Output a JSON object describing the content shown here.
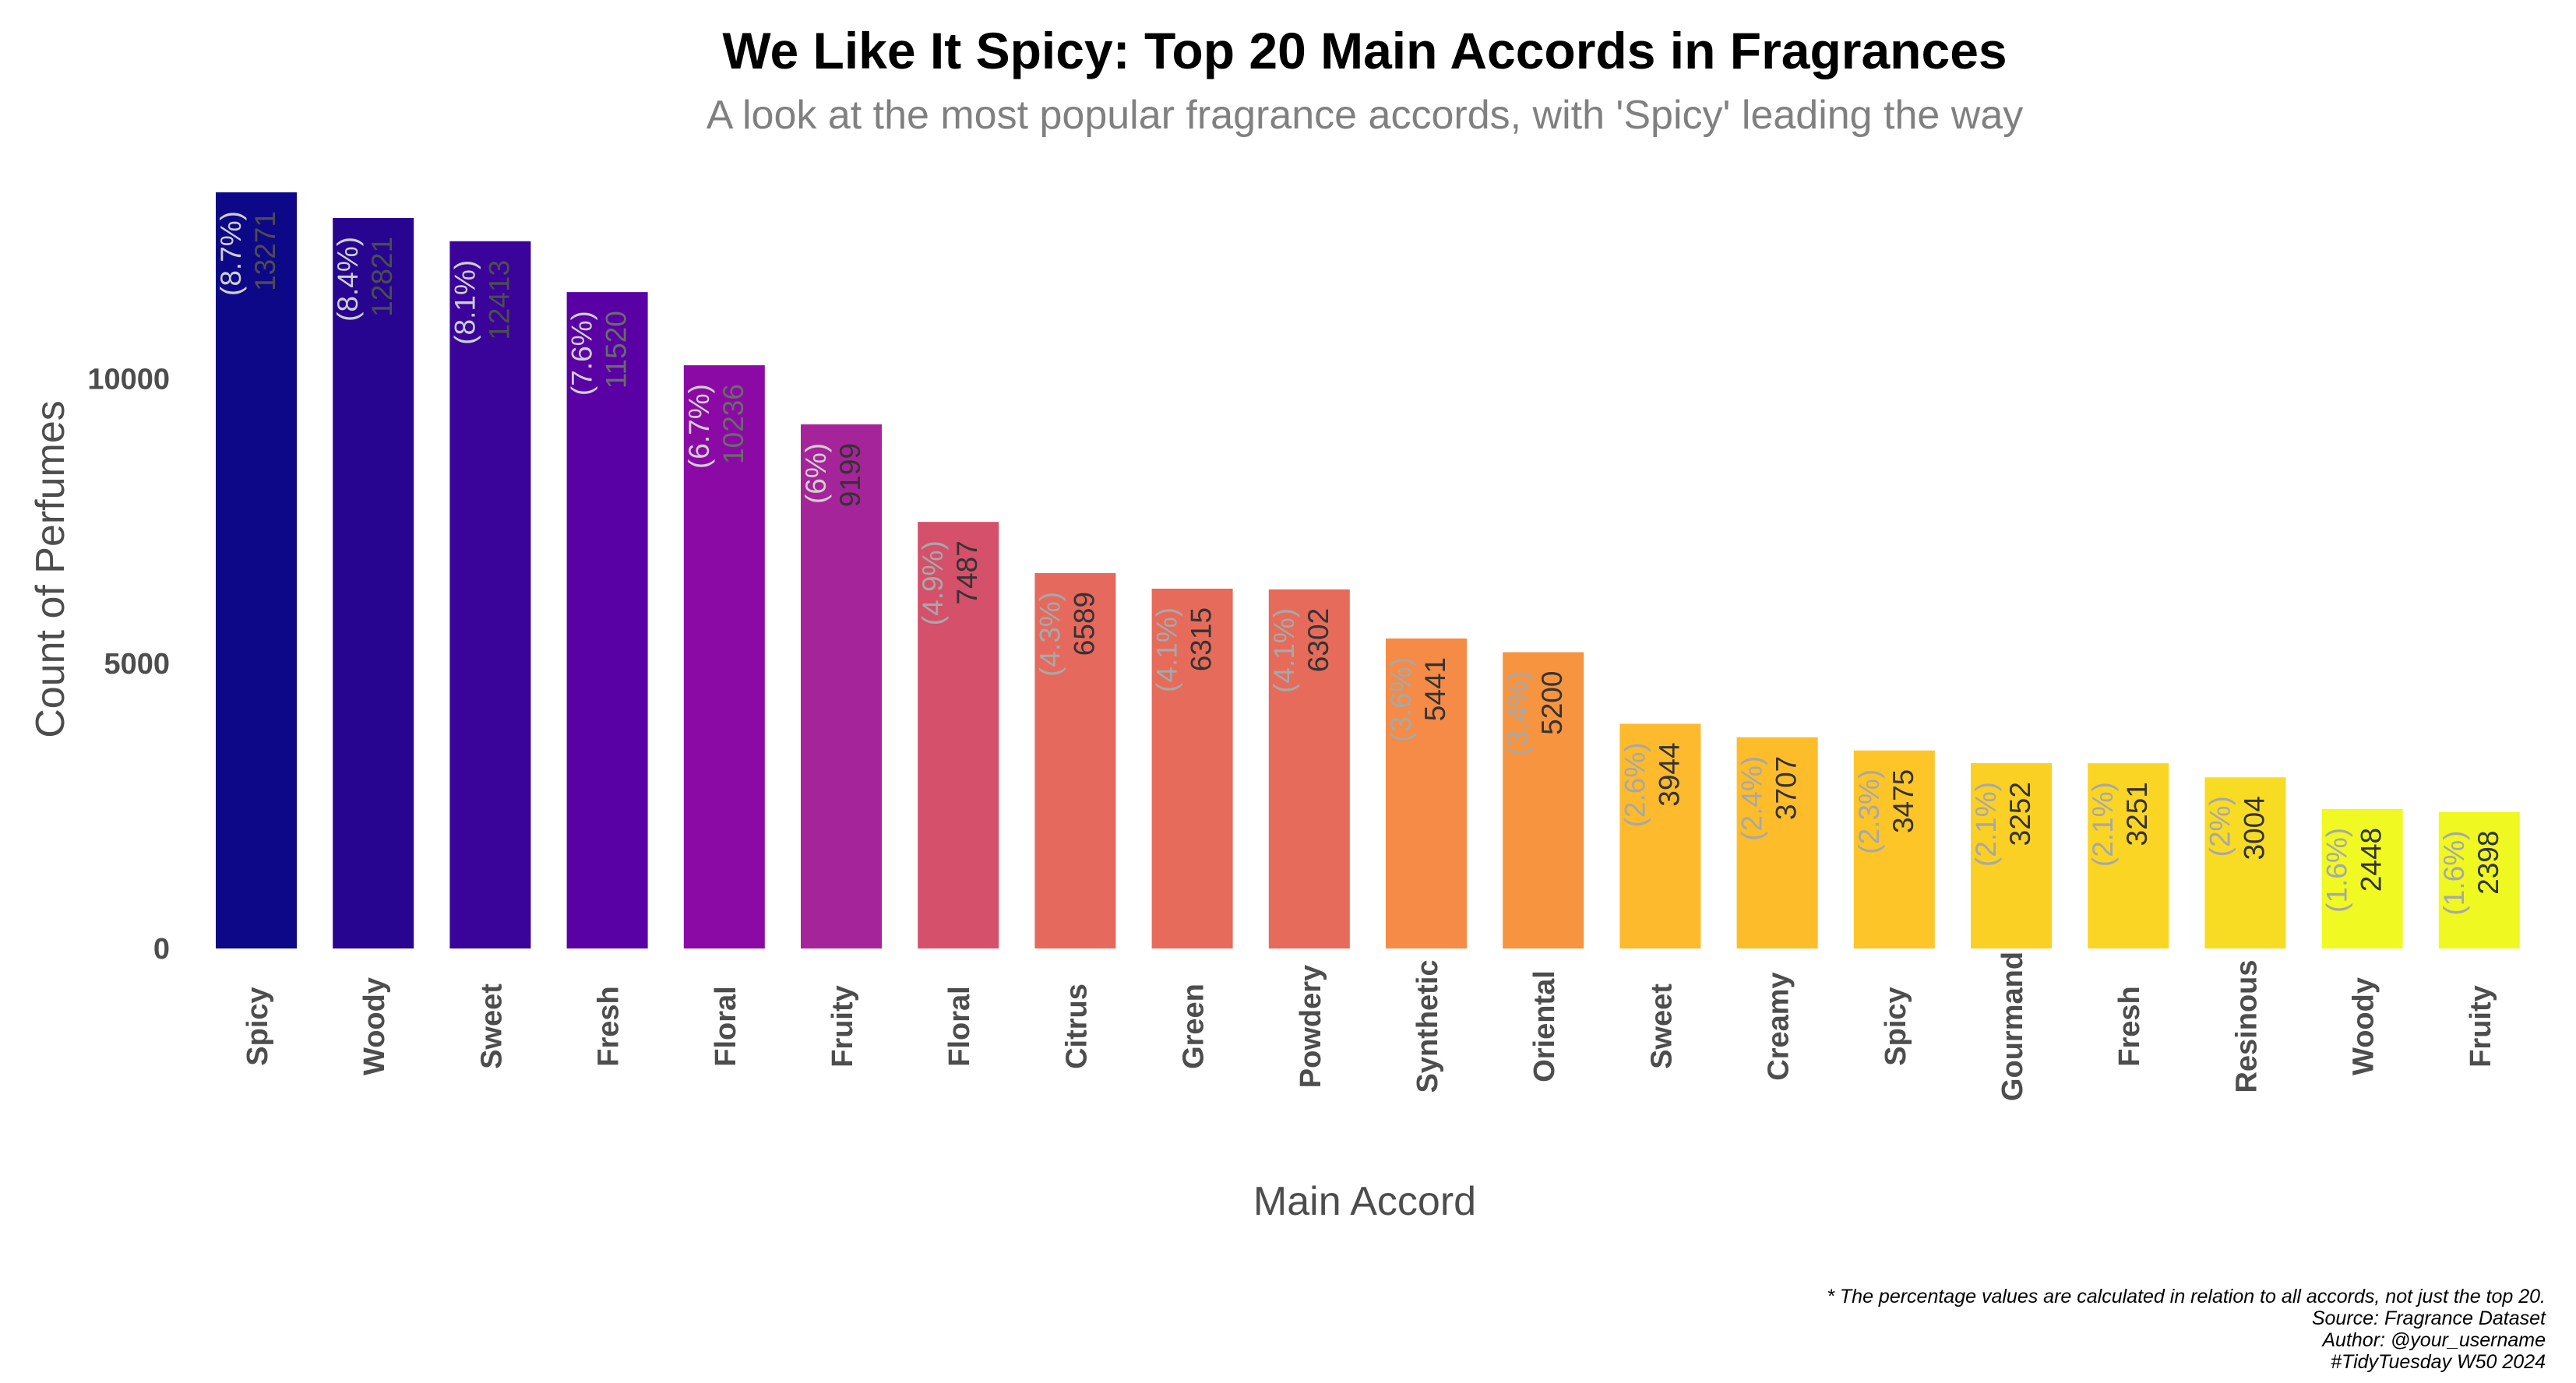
{
  "chart_data": {
    "type": "bar",
    "title": "We Like It Spicy: Top 20 Main Accords in Fragrances",
    "subtitle": "A look at the most popular fragrance accords, with 'Spicy' leading the way",
    "xlabel": "Main Accord",
    "ylabel": "Count of Perfumes",
    "ylim": [
      0,
      13500
    ],
    "yticks": [
      0,
      5000,
      10000
    ],
    "grid": false,
    "legend": "none",
    "categories": [
      "Spicy",
      "Woody",
      "Sweet",
      "Fresh",
      "Floral",
      "Fruity",
      "Floral",
      "Citrus",
      "Green",
      "Powdery",
      "Synthetic",
      "Oriental",
      "Sweet",
      "Creamy",
      "Spicy",
      "Gourmand",
      "Fresh",
      "Resinous",
      "Woody",
      "Fruity"
    ],
    "values": [
      13271,
      12821,
      12413,
      11520,
      10236,
      9199,
      7487,
      6589,
      6315,
      6302,
      5441,
      5200,
      3944,
      3707,
      3475,
      3252,
      3251,
      3004,
      2448,
      2398
    ],
    "percent_labels": [
      "(8.7%)",
      "(8.4%)",
      "(8.1%)",
      "(7.6%)",
      "(6.7%)",
      "(6%)",
      "(4.9%)",
      "(4.3%)",
      "(4.1%)",
      "(4.1%)",
      "(3.6%)",
      "(3.4%)",
      "(2.6%)",
      "(2.4%)",
      "(2.3%)",
      "(2.1%)",
      "(2.1%)",
      "(2%)",
      "(1.6%)",
      "(1.6%)"
    ],
    "bar_colors": [
      "#0d0887",
      "#270591",
      "#3a049a",
      "#5901a5",
      "#8b0aa5",
      "#a6249a",
      "#d5506a",
      "#e6695d",
      "#e66b5a",
      "#e66b5a",
      "#f58b46",
      "#f6943f",
      "#fdba2c",
      "#fdbc2a",
      "#fdc527",
      "#fbd024",
      "#fbd524",
      "#f8dc24",
      "#f0f921",
      "#eff821"
    ],
    "value_label_colors": [
      "#4d4d4d",
      "#4d4d4d",
      "#4d4d4d",
      "#6a6a6a",
      "#6a6a6a",
      "#333333",
      "#333333",
      "#333333",
      "#333333",
      "#333333",
      "#333333",
      "#333333",
      "#333333",
      "#333333",
      "#333333",
      "#333333",
      "#333333",
      "#333333",
      "#333333",
      "#333333"
    ],
    "percent_label_colors": [
      "#cfcfcf",
      "#cfcfcf",
      "#cfcfcf",
      "#cfcfcf",
      "#cfcfcf",
      "#cfcfcf",
      "#a8a8a8",
      "#a8a8a8",
      "#a8a8a8",
      "#a8a8a8",
      "#a8a8a8",
      "#a8a8a8",
      "#a8a8a8",
      "#a8a8a8",
      "#a8a8a8",
      "#a8a8a8",
      "#a8a8a8",
      "#a8a8a8",
      "#a8a8a8",
      "#a8a8a8"
    ],
    "caption": [
      "* The percentage values are calculated in relation to all accords, not just the top 20.",
      "Source: Fragrance Dataset",
      "Author: @your_username",
      "#TidyTuesday W50 2024"
    ]
  }
}
